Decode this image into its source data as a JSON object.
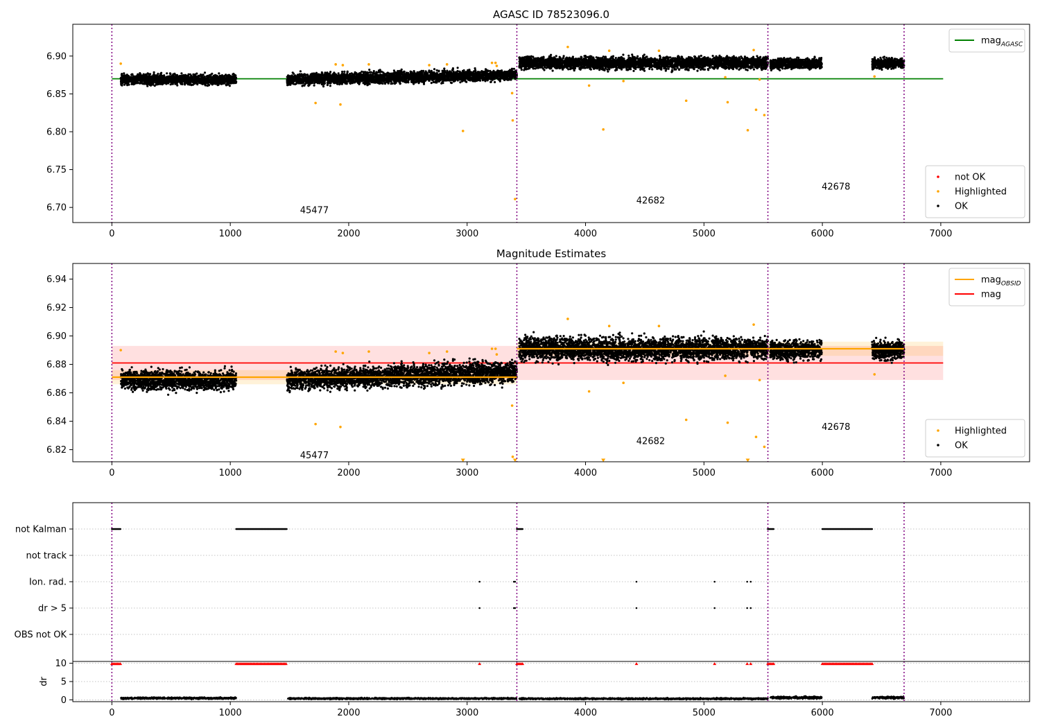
{
  "chart_data": [
    {
      "type": "scatter",
      "title": "AGASC ID 78523096.0",
      "xlim": [
        -330,
        7750
      ],
      "ylim": [
        6.68,
        6.942
      ],
      "xticks": [
        0,
        1000,
        2000,
        3000,
        4000,
        5000,
        6000,
        7000
      ],
      "yticks": [
        6.7,
        6.75,
        6.8,
        6.85,
        6.9
      ],
      "series": [
        {
          "name": "mag_AGASC",
          "kind": "line",
          "color": "#008000",
          "x": [
            0,
            7020
          ],
          "y": [
            6.87,
            6.87
          ]
        },
        {
          "name": "OK",
          "kind": "points",
          "color": "#000000",
          "density": "dense",
          "segments": [
            {
              "x": [
                75,
                1050
              ],
              "y_center": 6.869,
              "spread": 0.009
            },
            {
              "x": [
                1480,
                3420
              ],
              "y_center_start": 6.869,
              "y_center_end": 6.875,
              "spread": 0.01
            },
            {
              "x": [
                3440,
                5540
              ],
              "y_center": 6.891,
              "spread": 0.011
            },
            {
              "x": [
                5560,
                5995
              ],
              "y_center": 6.89,
              "spread": 0.009
            },
            {
              "x": [
                6420,
                6690
              ],
              "y_center": 6.89,
              "spread": 0.009
            }
          ]
        },
        {
          "name": "Highlighted",
          "kind": "points",
          "color": "#ffa500",
          "points": [
            [
              75,
              6.89
            ],
            [
              1720,
              6.838
            ],
            [
              1890,
              6.889
            ],
            [
              1930,
              6.836
            ],
            [
              1950,
              6.888
            ],
            [
              2170,
              6.889
            ],
            [
              2680,
              6.888
            ],
            [
              2830,
              6.889
            ],
            [
              2965,
              6.801
            ],
            [
              3210,
              6.891
            ],
            [
              3240,
              6.891
            ],
            [
              3250,
              6.887
            ],
            [
              3380,
              6.851
            ],
            [
              3385,
              6.815
            ],
            [
              3405,
              6.711
            ],
            [
              3850,
              6.912
            ],
            [
              4030,
              6.861
            ],
            [
              4150,
              6.803
            ],
            [
              4200,
              6.907
            ],
            [
              4320,
              6.867
            ],
            [
              4620,
              6.907
            ],
            [
              4850,
              6.841
            ],
            [
              5180,
              6.872
            ],
            [
              5200,
              6.839
            ],
            [
              5370,
              6.802
            ],
            [
              5420,
              6.908
            ],
            [
              5440,
              6.829
            ],
            [
              5470,
              6.869
            ],
            [
              5510,
              6.822
            ],
            [
              6440,
              6.873
            ]
          ]
        }
      ],
      "vlines": [
        0,
        3420,
        5540,
        6690
      ],
      "annotations": [
        {
          "text": "45477",
          "x": 1710,
          "y": 6.696
        },
        {
          "text": "42682",
          "x": 4550,
          "y": 6.709
        },
        {
          "text": "42678",
          "x": 6115,
          "y": 6.727
        }
      ],
      "legends": [
        {
          "placement": "top-right",
          "items": [
            {
              "label": "mag",
              "sub": "AGASC",
              "marker": "line",
              "color": "#008000"
            }
          ]
        },
        {
          "placement": "bottom-right",
          "items": [
            {
              "label": "not OK",
              "marker": "dot",
              "color": "#ff0000"
            },
            {
              "label": "Highlighted",
              "marker": "dot",
              "color": "#ffa500"
            },
            {
              "label": "OK",
              "marker": "dot",
              "color": "#000000"
            }
          ]
        }
      ]
    },
    {
      "type": "scatter",
      "title": "Magnitude Estimates",
      "xlim": [
        -330,
        7750
      ],
      "ylim": [
        6.8115,
        6.951
      ],
      "xticks": [
        0,
        1000,
        2000,
        3000,
        4000,
        5000,
        6000,
        7000
      ],
      "yticks": [
        6.82,
        6.84,
        6.86,
        6.88,
        6.9,
        6.92,
        6.94
      ],
      "bands": [
        {
          "name": "mag",
          "color": "#ff0000",
          "opacity": 0.12,
          "x": [
            0,
            7020
          ],
          "y": [
            6.869,
            6.893
          ]
        },
        {
          "name": "mag_OBSID",
          "color": "#ffa500",
          "opacity": 0.15,
          "x": [
            0,
            3420
          ],
          "y": [
            6.866,
            6.876
          ]
        },
        {
          "name": "mag_OBSID",
          "color": "#ffa500",
          "opacity": 0.15,
          "x": [
            3420,
            7020
          ],
          "y": [
            6.886,
            6.896
          ]
        }
      ],
      "series": [
        {
          "name": "mag",
          "kind": "line",
          "color": "#ff0000",
          "x": [
            0,
            7020
          ],
          "y": [
            6.881,
            6.881
          ]
        },
        {
          "name": "mag_OBSID",
          "kind": "steps",
          "color": "#ffa500",
          "segments": [
            {
              "x": [
                0,
                3420
              ],
              "y": 6.871
            },
            {
              "x": [
                3420,
                6690
              ],
              "y": 6.891
            }
          ]
        },
        {
          "name": "OK",
          "kind": "points",
          "color": "#000000",
          "density": "dense",
          "segments": [
            {
              "x": [
                75,
                1050
              ],
              "y_center": 6.869,
              "spread": 0.009
            },
            {
              "x": [
                1480,
                3420
              ],
              "y_center_start": 6.869,
              "y_center_end": 6.875,
              "spread": 0.01
            },
            {
              "x": [
                3440,
                5540
              ],
              "y_center": 6.891,
              "spread": 0.011
            },
            {
              "x": [
                5560,
                5995
              ],
              "y_center": 6.89,
              "spread": 0.009
            },
            {
              "x": [
                6420,
                6690
              ],
              "y_center": 6.89,
              "spread": 0.009
            }
          ]
        },
        {
          "name": "Highlighted",
          "kind": "points",
          "color": "#ffa500",
          "points": [
            [
              75,
              6.89
            ],
            [
              1720,
              6.838
            ],
            [
              1890,
              6.889
            ],
            [
              1930,
              6.836
            ],
            [
              1950,
              6.888
            ],
            [
              2170,
              6.889
            ],
            [
              2680,
              6.888
            ],
            [
              2830,
              6.889
            ],
            [
              3210,
              6.891
            ],
            [
              3240,
              6.891
            ],
            [
              3250,
              6.887
            ],
            [
              3380,
              6.851
            ],
            [
              3385,
              6.815
            ],
            [
              3850,
              6.912
            ],
            [
              4030,
              6.861
            ],
            [
              4200,
              6.907
            ],
            [
              4320,
              6.867
            ],
            [
              4620,
              6.907
            ],
            [
              4850,
              6.841
            ],
            [
              5180,
              6.872
            ],
            [
              5200,
              6.839
            ],
            [
              5420,
              6.908
            ],
            [
              5440,
              6.829
            ],
            [
              5470,
              6.869
            ],
            [
              5510,
              6.822
            ],
            [
              6440,
              6.873
            ]
          ]
        },
        {
          "name": "Highlighted (below range)",
          "kind": "triangles",
          "color": "#ffa500",
          "x": [
            2965,
            3405,
            4150,
            5370
          ],
          "y": 6.8125
        }
      ],
      "vlines": [
        0,
        3420,
        5540,
        6690
      ],
      "annotations": [
        {
          "text": "45477",
          "x": 1710,
          "y": 6.816
        },
        {
          "text": "42682",
          "x": 4550,
          "y": 6.826
        },
        {
          "text": "42678",
          "x": 6115,
          "y": 6.836
        }
      ],
      "legends": [
        {
          "placement": "top-right",
          "items": [
            {
              "label": "mag",
              "sub": "OBSID",
              "marker": "line",
              "color": "#ffa500"
            },
            {
              "label": "mag",
              "marker": "line",
              "color": "#ff0000"
            }
          ]
        },
        {
          "placement": "bottom-right",
          "items": [
            {
              "label": "Highlighted",
              "marker": "dot",
              "color": "#ffa500"
            },
            {
              "label": "OK",
              "marker": "dot",
              "color": "#000000"
            }
          ]
        }
      ]
    },
    {
      "type": "scatter",
      "title": "",
      "xlim": [
        -330,
        7750
      ],
      "categories": [
        "not Kalman",
        "not track",
        "Ion. rad.",
        "dr > 5",
        "OBS not OK"
      ],
      "flags": [
        {
          "category": "not Kalman",
          "ranges": [
            [
              0,
              75
            ],
            [
              1050,
              1480
            ],
            [
              3420,
              3470
            ],
            [
              5540,
              5590
            ],
            [
              6000,
              6420
            ]
          ],
          "points": []
        },
        {
          "category": "not track",
          "ranges": [],
          "points": []
        },
        {
          "category": "Ion. rad.",
          "ranges": [],
          "points": [
            3105,
            3395,
            3405,
            4430,
            5090,
            5365,
            5395
          ]
        },
        {
          "category": "dr > 5",
          "ranges": [],
          "points": [
            3105,
            3395,
            3405,
            4430,
            5090,
            5365,
            5395
          ]
        },
        {
          "category": "OBS not OK",
          "ranges": [],
          "points": []
        }
      ],
      "vlines": [
        0,
        3420,
        5540,
        6690
      ]
    },
    {
      "type": "scatter",
      "title": "",
      "ylabel": "dr",
      "xlim": [
        -330,
        7750
      ],
      "ylim": [
        -0.5,
        10.5
      ],
      "xticks": [
        0,
        1000,
        2000,
        3000,
        4000,
        5000,
        6000,
        7000
      ],
      "yticks": [
        0,
        5,
        10
      ],
      "series": [
        {
          "name": "dr",
          "kind": "points",
          "color": "#000000",
          "segments": [
            {
              "x": [
                75,
                1050
              ],
              "y_center": 0.45,
              "spread": 0.35
            },
            {
              "x": [
                1480,
                3420
              ],
              "y_center": 0.35,
              "spread": 0.3
            },
            {
              "x": [
                3440,
                5540
              ],
              "y_center": 0.3,
              "spread": 0.3
            },
            {
              "x": [
                5560,
                5995
              ],
              "y_center": 0.6,
              "spread": 0.45
            },
            {
              "x": [
                6420,
                6690
              ],
              "y_center": 0.6,
              "spread": 0.45
            }
          ]
        },
        {
          "name": "dr clipped",
          "kind": "triangles",
          "color": "#ff0000",
          "y": 9.9,
          "ranges": [
            [
              0,
              75
            ],
            [
              1050,
              1480
            ],
            [
              3420,
              3470
            ],
            [
              5540,
              5590
            ],
            [
              6000,
              6420
            ]
          ],
          "x": [
            3105,
            4430,
            5090,
            5365,
            5395
          ]
        }
      ],
      "vlines": [
        0,
        3420,
        5540,
        6690
      ]
    }
  ]
}
